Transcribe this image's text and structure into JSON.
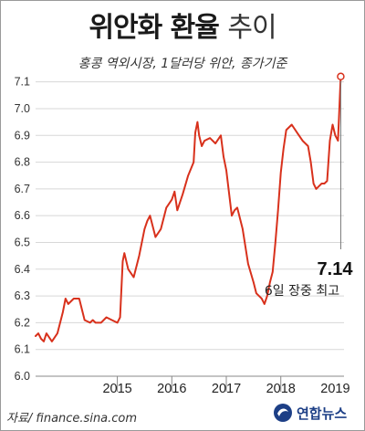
{
  "chart_title_main": "위안화 환율",
  "chart_title_sub": "추이",
  "chart_subtitle": "홍콩 역외시장, 1달러당 위안, 종가기준",
  "source": "자료/ finance.sina.com",
  "logo": "연합뉴스",
  "annotation": {
    "value": "7.14",
    "note": "6일 장중 최고"
  },
  "colors": {
    "line": "#d8311c",
    "grid": "#d7d7d7",
    "axis": "#888888"
  },
  "chart_data": {
    "type": "line",
    "title": "위안화 환율 추이",
    "subtitle": "홍콩 역외시장, 1달러당 위안, 종가기준",
    "xlabel": "",
    "ylabel": "",
    "ylim": [
      6.0,
      7.15
    ],
    "xlim": [
      2014.0,
      2019.66
    ],
    "grid": "horizontal",
    "y_ticks": [
      "6.0",
      "6.1",
      "6.2",
      "6.3",
      "6.4",
      "6.5",
      "6.6",
      "6.7",
      "6.8",
      "6.9",
      "7.0",
      "7.1"
    ],
    "x_ticks": [
      {
        "label": "2015",
        "pos": 2015.0
      },
      {
        "label": "2016",
        "pos": 2016.0
      },
      {
        "label": "2017",
        "pos": 2017.0
      },
      {
        "label": "2018",
        "pos": 2018.0
      },
      {
        "label": "2019",
        "pos": 2019.0
      }
    ],
    "series": [
      {
        "x": [
          2014.0,
          2014.05,
          2014.1,
          2014.15,
          2014.2,
          2014.3,
          2014.4,
          2014.5,
          2014.55,
          2014.6,
          2014.7,
          2014.8,
          2014.9,
          2015.0,
          2015.05,
          2015.1,
          2015.2,
          2015.3,
          2015.4,
          2015.5,
          2015.55,
          2015.6,
          2015.63,
          2015.7,
          2015.8,
          2015.9,
          2016.0,
          2016.05,
          2016.1,
          2016.2,
          2016.3,
          2016.4,
          2016.5,
          2016.55,
          2016.6,
          2016.7,
          2016.8,
          2016.9,
          2016.93,
          2016.97,
          2017.0,
          2017.05,
          2017.1,
          2017.2,
          2017.3,
          2017.4,
          2017.45,
          2017.5,
          2017.6,
          2017.65,
          2017.7,
          2017.8,
          2017.9,
          2018.0,
          2018.05,
          2018.1,
          2018.15,
          2018.2,
          2018.25,
          2018.3,
          2018.35,
          2018.4,
          2018.45,
          2018.5,
          2018.55,
          2018.6,
          2018.7,
          2018.8,
          2018.9,
          2019.0,
          2019.05,
          2019.1,
          2019.15,
          2019.2,
          2019.25,
          2019.3,
          2019.35,
          2019.4,
          2019.45,
          2019.5,
          2019.55,
          2019.6
        ],
        "y": [
          6.15,
          6.16,
          6.14,
          6.13,
          6.16,
          6.13,
          6.16,
          6.24,
          6.29,
          6.27,
          6.29,
          6.29,
          6.21,
          6.2,
          6.21,
          6.2,
          6.2,
          6.22,
          6.21,
          6.2,
          6.22,
          6.43,
          6.46,
          6.4,
          6.37,
          6.45,
          6.55,
          6.58,
          6.6,
          6.52,
          6.55,
          6.63,
          6.66,
          6.69,
          6.62,
          6.68,
          6.75,
          6.8,
          6.91,
          6.95,
          6.9,
          6.86,
          6.88,
          6.89,
          6.87,
          6.9,
          6.82,
          6.77,
          6.6,
          6.62,
          6.63,
          6.55,
          6.42,
          6.35,
          6.31,
          6.3,
          6.29,
          6.27,
          6.3,
          6.35,
          6.39,
          6.5,
          6.62,
          6.76,
          6.85,
          6.92,
          6.94,
          6.91,
          6.88,
          6.86,
          6.8,
          6.72,
          6.7,
          6.71,
          6.72,
          6.72,
          6.73,
          6.88,
          6.94,
          6.9,
          6.88,
          7.12
        ]
      }
    ],
    "annotations": [
      {
        "x": 2019.6,
        "y": 7.12,
        "label": "7.14",
        "note": "6일 장중 최고"
      }
    ]
  }
}
